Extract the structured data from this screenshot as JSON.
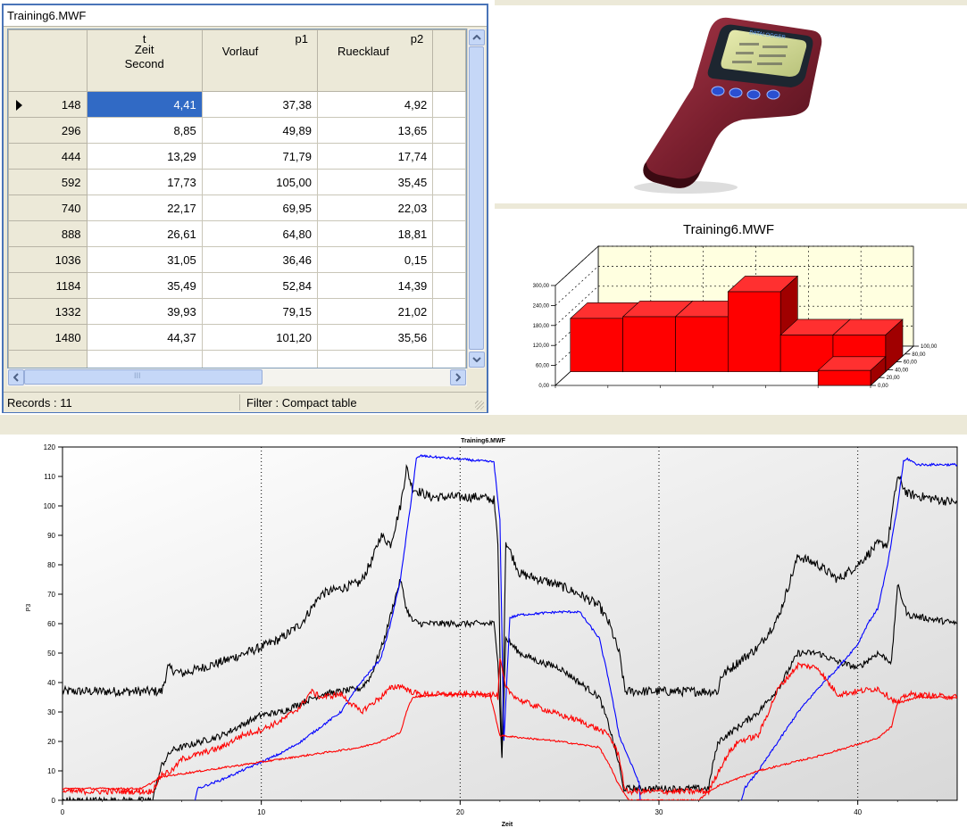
{
  "grid": {
    "window_title": "Training6.MWF",
    "columns": [
      {
        "code": "t",
        "name": "Zeit",
        "unit": "Second"
      },
      {
        "code": "p1",
        "name": "Vorlauf"
      },
      {
        "code": "p2",
        "name": "Ruecklauf"
      }
    ],
    "rows": [
      {
        "id": "148",
        "t": "4,41",
        "p1": "37,38",
        "p2": "4,92"
      },
      {
        "id": "296",
        "t": "8,85",
        "p1": "49,89",
        "p2": "13,65"
      },
      {
        "id": "444",
        "t": "13,29",
        "p1": "71,79",
        "p2": "17,74"
      },
      {
        "id": "592",
        "t": "17,73",
        "p1": "105,00",
        "p2": "35,45"
      },
      {
        "id": "740",
        "t": "22,17",
        "p1": "69,95",
        "p2": "22,03"
      },
      {
        "id": "888",
        "t": "26,61",
        "p1": "64,80",
        "p2": "18,81"
      },
      {
        "id": "1036",
        "t": "31,05",
        "p1": "36,46",
        "p2": "0,15"
      },
      {
        "id": "1184",
        "t": "35,49",
        "p1": "52,84",
        "p2": "14,39"
      },
      {
        "id": "1332",
        "t": "39,93",
        "p1": "79,15",
        "p2": "21,02"
      },
      {
        "id": "1480",
        "t": "44,37",
        "p1": "101,20",
        "p2": "35,56"
      }
    ],
    "status_records": "Records : 11",
    "status_filter": "Filter : Compact table",
    "scrollbar_glyph": "III"
  },
  "device": {
    "icon": "handheld-data-logger"
  },
  "chart_data": [
    {
      "type": "bar",
      "title": "Training6.MWF",
      "three_d": true,
      "ytick_labels": [
        "0,00",
        "60,00",
        "120,00",
        "180,00",
        "240,00",
        "300,00"
      ],
      "ztick_labels": [
        "0,00",
        "20,00",
        "40,00",
        "60,00",
        "80,00",
        "100,00"
      ],
      "ylim": [
        0,
        300
      ],
      "front_row_values": [
        0,
        0,
        0,
        0,
        0,
        45
      ],
      "back_row_values": [
        160,
        165,
        165,
        240,
        110,
        110
      ],
      "grid": true,
      "color": "#ff0000"
    },
    {
      "type": "line",
      "title": "Training6.MWF",
      "xlabel": "Zeit",
      "ylabel": "P3",
      "xlim": [
        0,
        45
      ],
      "ylim": [
        0,
        120
      ],
      "xticks": [
        0,
        10,
        20,
        30,
        40
      ],
      "yticks": [
        0,
        10,
        20,
        30,
        40,
        50,
        60,
        70,
        80,
        90,
        100,
        110,
        120
      ],
      "grid": "dotted vertical at 10, 20, 30, 40",
      "series": [
        {
          "color": "#000000",
          "noise": 1.6,
          "points": [
            [
              0,
              37
            ],
            [
              5,
              37
            ],
            [
              5.3,
              45
            ],
            [
              6,
              43
            ],
            [
              8,
              47
            ],
            [
              10,
              52
            ],
            [
              11,
              55
            ],
            [
              12,
              60
            ],
            [
              13,
              70
            ],
            [
              14,
              72
            ],
            [
              15,
              74
            ],
            [
              15.6,
              82
            ],
            [
              16,
              90
            ],
            [
              16.5,
              87
            ],
            [
              17,
              100
            ],
            [
              17.3,
              113
            ],
            [
              17.6,
              106
            ],
            [
              18.5,
              103
            ],
            [
              21,
              103
            ],
            [
              21.7,
              102
            ],
            [
              21.9,
              87
            ],
            [
              22.1,
              13
            ],
            [
              22.3,
              88
            ],
            [
              23,
              77
            ],
            [
              24,
              75
            ],
            [
              25,
              73
            ],
            [
              26,
              70
            ],
            [
              27,
              66
            ],
            [
              27.5,
              60
            ],
            [
              28,
              50
            ],
            [
              28.3,
              37
            ],
            [
              29,
              37
            ],
            [
              33,
              37
            ],
            [
              33.1,
              42
            ],
            [
              34,
              47
            ],
            [
              35,
              52
            ],
            [
              36,
              62
            ],
            [
              37,
              83
            ],
            [
              38,
              80
            ],
            [
              39,
              75
            ],
            [
              40,
              80
            ],
            [
              41,
              87
            ],
            [
              41.5,
              87
            ],
            [
              42,
              110
            ],
            [
              42.5,
              104
            ],
            [
              45,
              101
            ]
          ]
        },
        {
          "color": "#000000",
          "noise": 1.1,
          "points": [
            [
              0,
              0
            ],
            [
              4.5,
              0
            ],
            [
              5,
              12
            ],
            [
              5.5,
              17
            ],
            [
              6,
              18
            ],
            [
              8,
              22
            ],
            [
              10,
              29
            ],
            [
              11,
              30
            ],
            [
              12,
              33
            ],
            [
              13,
              36
            ],
            [
              14,
              37
            ],
            [
              15,
              38
            ],
            [
              15.5,
              42
            ],
            [
              16.2,
              55
            ],
            [
              16.7,
              68
            ],
            [
              17,
              75
            ],
            [
              17.3,
              65
            ],
            [
              17.6,
              61
            ],
            [
              18,
              60
            ],
            [
              21,
              60
            ],
            [
              21.7,
              60
            ],
            [
              21.9,
              48
            ],
            [
              22.1,
              14
            ],
            [
              22.3,
              55
            ],
            [
              23,
              50
            ],
            [
              24,
              47
            ],
            [
              25,
              45
            ],
            [
              26,
              40
            ],
            [
              27,
              35
            ],
            [
              27.5,
              25
            ],
            [
              28,
              12
            ],
            [
              28.2,
              4
            ],
            [
              29,
              4
            ],
            [
              32.5,
              4
            ],
            [
              32.7,
              12
            ],
            [
              33,
              20
            ],
            [
              34,
              25
            ],
            [
              35,
              30
            ],
            [
              36,
              38
            ],
            [
              37,
              50
            ],
            [
              38,
              50
            ],
            [
              39,
              47
            ],
            [
              40,
              45
            ],
            [
              41,
              50
            ],
            [
              41.7,
              47
            ],
            [
              42,
              73
            ],
            [
              42.5,
              63
            ],
            [
              45,
              60
            ]
          ]
        },
        {
          "color": "#0000ff",
          "noise": 0.4,
          "points": [
            [
              0,
              -4
            ],
            [
              6.5,
              -4
            ],
            [
              6.8,
              4
            ],
            [
              8,
              7
            ],
            [
              9,
              10
            ],
            [
              10,
              13
            ],
            [
              11,
              16
            ],
            [
              12,
              20
            ],
            [
              13,
              25
            ],
            [
              14,
              30
            ],
            [
              15,
              40
            ],
            [
              16,
              48
            ],
            [
              16.5,
              60
            ],
            [
              17,
              75
            ],
            [
              17.5,
              100
            ],
            [
              17.8,
              116
            ],
            [
              18,
              117
            ],
            [
              21.5,
              115
            ],
            [
              21.7,
              115
            ],
            [
              22,
              95
            ],
            [
              22.2,
              20
            ],
            [
              22.5,
              62
            ],
            [
              23,
              63
            ],
            [
              25,
              64
            ],
            [
              26,
              64
            ],
            [
              27,
              55
            ],
            [
              27.5,
              40
            ],
            [
              28,
              22
            ],
            [
              29,
              6
            ],
            [
              29.1,
              -4
            ],
            [
              34,
              -4
            ],
            [
              34.3,
              4
            ],
            [
              35,
              10
            ],
            [
              36,
              20
            ],
            [
              37,
              30
            ],
            [
              38,
              38
            ],
            [
              39,
              45
            ],
            [
              40,
              53
            ],
            [
              40.5,
              60
            ],
            [
              41,
              65
            ],
            [
              41.5,
              80
            ],
            [
              42,
              100
            ],
            [
              42.3,
              115
            ],
            [
              42.5,
              116
            ],
            [
              43,
              114
            ],
            [
              45,
              114
            ]
          ]
        },
        {
          "color": "#ff0000",
          "noise": 1.0,
          "points": [
            [
              0,
              3
            ],
            [
              4.5,
              3
            ],
            [
              5,
              9
            ],
            [
              5.5,
              10
            ],
            [
              6,
              14
            ],
            [
              8,
              18
            ],
            [
              9,
              22
            ],
            [
              10,
              24
            ],
            [
              11,
              27
            ],
            [
              12,
              32
            ],
            [
              12.5,
              37
            ],
            [
              13,
              35
            ],
            [
              14,
              36
            ],
            [
              15,
              30
            ],
            [
              16,
              35
            ],
            [
              16.5,
              38
            ],
            [
              17,
              39
            ],
            [
              17.5,
              37
            ],
            [
              18,
              36
            ],
            [
              21,
              36
            ],
            [
              21.7,
              36
            ],
            [
              21.9,
              35
            ],
            [
              22,
              48
            ],
            [
              22.3,
              38
            ],
            [
              23,
              34
            ],
            [
              25,
              29
            ],
            [
              26,
              27
            ],
            [
              27,
              24
            ],
            [
              27.5,
              22
            ],
            [
              28,
              15
            ],
            [
              28.3,
              3
            ],
            [
              29,
              3
            ],
            [
              32.5,
              3
            ],
            [
              33,
              10
            ],
            [
              33.5,
              16
            ],
            [
              34,
              20
            ],
            [
              35,
              22
            ],
            [
              36,
              38
            ],
            [
              37,
              46
            ],
            [
              38,
              45
            ],
            [
              38.5,
              40
            ],
            [
              39,
              36
            ],
            [
              40,
              37
            ],
            [
              41,
              38
            ],
            [
              42,
              33
            ],
            [
              42.5,
              36
            ],
            [
              45,
              35
            ]
          ]
        },
        {
          "color": "#ff0000",
          "noise": 0.3,
          "points": [
            [
              0,
              4
            ],
            [
              4,
              4
            ],
            [
              5,
              8
            ],
            [
              7,
              10
            ],
            [
              10,
              13
            ],
            [
              12,
              15
            ],
            [
              15,
              18
            ],
            [
              16,
              20
            ],
            [
              17,
              23
            ],
            [
              17.3,
              30
            ],
            [
              17.6,
              35
            ],
            [
              19,
              36
            ],
            [
              21,
              36
            ],
            [
              21.5,
              36
            ],
            [
              22,
              22
            ],
            [
              25,
              20
            ],
            [
              27,
              18
            ],
            [
              27.5,
              12
            ],
            [
              28,
              5
            ],
            [
              28.5,
              0
            ],
            [
              32,
              0
            ],
            [
              32.5,
              3
            ],
            [
              33,
              5
            ],
            [
              35,
              10
            ],
            [
              38,
              15
            ],
            [
              40,
              19
            ],
            [
              41,
              21
            ],
            [
              41.7,
              25
            ],
            [
              42,
              33
            ],
            [
              43,
              35
            ],
            [
              45,
              35
            ]
          ]
        }
      ]
    }
  ]
}
